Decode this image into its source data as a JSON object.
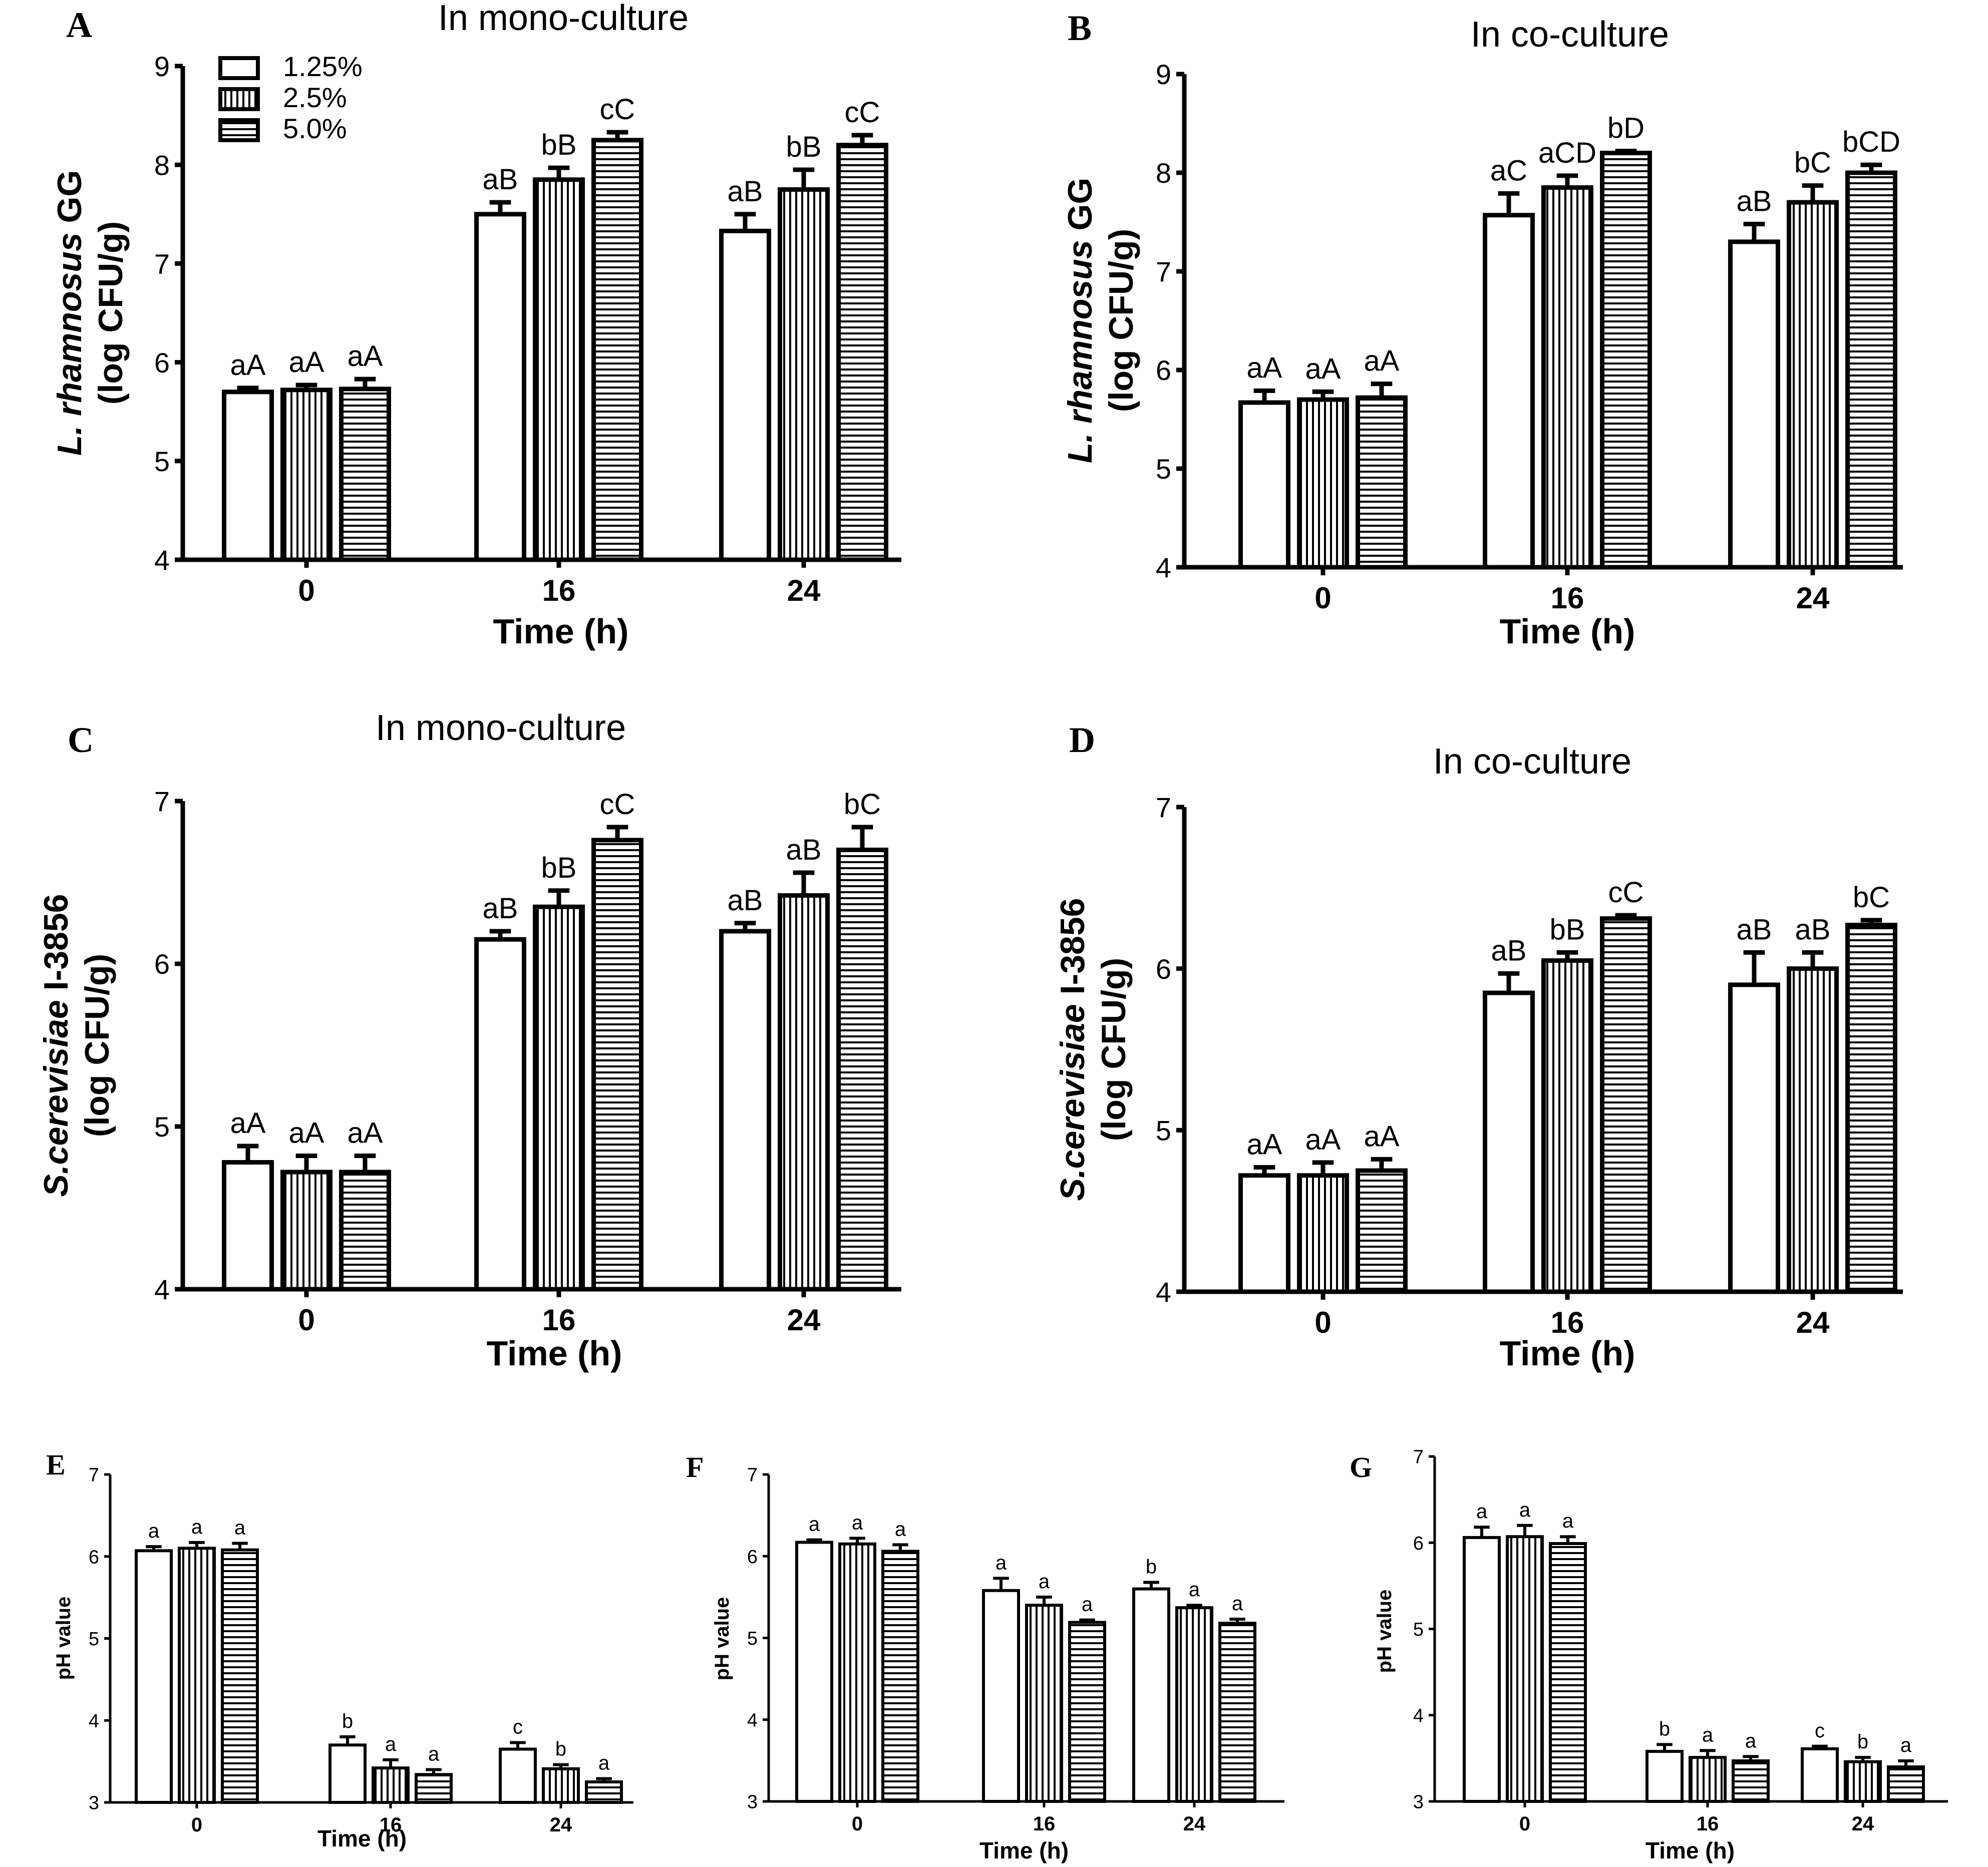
{
  "figure": {
    "legend": [
      "1.25%",
      "2.5%",
      "5.0%"
    ],
    "xlabel": "Time (h)",
    "categories": [
      "0",
      "16",
      "24"
    ]
  },
  "chart_data": [
    {
      "panel": "A",
      "type": "bar",
      "title": "In mono-culture",
      "ylabel_italic": "L. rhamnosus",
      "ylabel_rest": " GG",
      "ylabel_units": "(log CFU/g)",
      "ylim": [
        4,
        9
      ],
      "yticks": [
        "4",
        "5",
        "6",
        "7",
        "8",
        "9"
      ],
      "legend_shown": true,
      "series": [
        {
          "name": "1.25%",
          "values": [
            5.7,
            7.5,
            7.33
          ],
          "errors": [
            0.04,
            0.12,
            0.17
          ]
        },
        {
          "name": "2.5%",
          "values": [
            5.72,
            7.85,
            7.75
          ],
          "errors": [
            0.05,
            0.12,
            0.2
          ]
        },
        {
          "name": "5.0%",
          "values": [
            5.73,
            8.25,
            8.2
          ],
          "errors": [
            0.1,
            0.08,
            0.1
          ]
        }
      ],
      "annotations": [
        [
          "aA",
          "aA",
          "aA"
        ],
        [
          "aB",
          "bB",
          "cC"
        ],
        [
          "aB",
          "bB",
          "cC"
        ]
      ]
    },
    {
      "panel": "B",
      "type": "bar",
      "title": "In co-culture",
      "ylabel_italic": "L. rhamnosus",
      "ylabel_rest": " GG",
      "ylabel_units": "(log CFU/g)",
      "ylim": [
        4,
        9
      ],
      "yticks": [
        "4",
        "5",
        "6",
        "7",
        "8",
        "9"
      ],
      "legend_shown": false,
      "series": [
        {
          "name": "1.25%",
          "values": [
            5.67,
            7.57,
            7.3
          ],
          "errors": [
            0.12,
            0.22,
            0.18
          ]
        },
        {
          "name": "2.5%",
          "values": [
            5.7,
            7.85,
            7.7
          ],
          "errors": [
            0.08,
            0.12,
            0.17
          ]
        },
        {
          "name": "5.0%",
          "values": [
            5.72,
            8.2,
            8.0
          ],
          "errors": [
            0.14,
            0.02,
            0.08
          ]
        }
      ],
      "annotations": [
        [
          "aA",
          "aA",
          "aA"
        ],
        [
          "aC",
          "aCD",
          "bD"
        ],
        [
          "aB",
          "bC",
          "bCD"
        ]
      ]
    },
    {
      "panel": "C",
      "type": "bar",
      "title": "In mono-culture",
      "ylabel_italic": "S.cerevisiae",
      "ylabel_rest": " I-3856",
      "ylabel_units": "(log CFU/g)",
      "ylim": [
        4,
        7
      ],
      "yticks": [
        "4",
        "5",
        "6",
        "7"
      ],
      "legend_shown": false,
      "series": [
        {
          "name": "1.25%",
          "values": [
            4.78,
            6.15,
            6.2
          ],
          "errors": [
            0.1,
            0.05,
            0.05
          ]
        },
        {
          "name": "2.5%",
          "values": [
            4.72,
            6.35,
            6.42
          ],
          "errors": [
            0.1,
            0.1,
            0.14
          ]
        },
        {
          "name": "5.0%",
          "values": [
            4.72,
            6.76,
            6.7
          ],
          "errors": [
            0.1,
            0.08,
            0.14
          ]
        }
      ],
      "annotations": [
        [
          "aA",
          "aA",
          "aA"
        ],
        [
          "aB",
          "bB",
          "cC"
        ],
        [
          "aB",
          "aB",
          "bC"
        ]
      ]
    },
    {
      "panel": "D",
      "type": "bar",
      "title": "In co-culture",
      "ylabel_italic": "S.cerevisiae",
      "ylabel_rest": " I-3856",
      "ylabel_units": "(log CFU/g)",
      "ylim": [
        4,
        7
      ],
      "yticks": [
        "4",
        "5",
        "6",
        "7"
      ],
      "legend_shown": false,
      "series": [
        {
          "name": "1.25%",
          "values": [
            4.72,
            5.85,
            5.9
          ],
          "errors": [
            0.05,
            0.12,
            0.2
          ]
        },
        {
          "name": "2.5%",
          "values": [
            4.72,
            6.05,
            6.0
          ],
          "errors": [
            0.08,
            0.05,
            0.1
          ]
        },
        {
          "name": "5.0%",
          "values": [
            4.75,
            6.31,
            6.27
          ],
          "errors": [
            0.07,
            0.02,
            0.03
          ]
        }
      ],
      "annotations": [
        [
          "aA",
          "aA",
          "aA"
        ],
        [
          "aB",
          "bB",
          "cC"
        ],
        [
          "aB",
          "aB",
          "bC"
        ]
      ]
    },
    {
      "panel": "E",
      "type": "bar",
      "title": "",
      "ylabel_plain": "pH value",
      "ylim": [
        3,
        7
      ],
      "yticks": [
        "3",
        "4",
        "5",
        "6",
        "7"
      ],
      "legend_shown": false,
      "series": [
        {
          "name": "1.25%",
          "values": [
            6.07,
            3.7,
            3.65
          ],
          "errors": [
            0.05,
            0.1,
            0.08
          ]
        },
        {
          "name": "2.5%",
          "values": [
            6.1,
            3.42,
            3.41
          ],
          "errors": [
            0.07,
            0.1,
            0.05
          ]
        },
        {
          "name": "5.0%",
          "values": [
            6.08,
            3.34,
            3.25
          ],
          "errors": [
            0.08,
            0.06,
            0.04
          ]
        }
      ],
      "annotations": [
        [
          "a",
          "a",
          "a"
        ],
        [
          "b",
          "a",
          "a"
        ],
        [
          "c",
          "b",
          "a"
        ]
      ]
    },
    {
      "panel": "F",
      "type": "bar",
      "title": "",
      "ylabel_plain": "pH value",
      "ylim": [
        3,
        7
      ],
      "yticks": [
        "3",
        "4",
        "5",
        "6",
        "7"
      ],
      "legend_shown": false,
      "series": [
        {
          "name": "1.25%",
          "values": [
            6.17,
            5.58,
            5.6
          ],
          "errors": [
            0.03,
            0.15,
            0.08
          ]
        },
        {
          "name": "2.5%",
          "values": [
            6.15,
            5.4,
            5.37
          ],
          "errors": [
            0.07,
            0.1,
            0.03
          ]
        },
        {
          "name": "5.0%",
          "values": [
            6.06,
            5.19,
            5.18
          ],
          "errors": [
            0.08,
            0.03,
            0.05
          ]
        }
      ],
      "annotations": [
        [
          "a",
          "a",
          "a"
        ],
        [
          "a",
          "a",
          "a"
        ],
        [
          "b",
          "a",
          "a"
        ]
      ]
    },
    {
      "panel": "G",
      "type": "bar",
      "title": "",
      "ylabel_plain": "pH value",
      "ylim": [
        3,
        7
      ],
      "yticks": [
        "3",
        "4",
        "5",
        "6",
        "7"
      ],
      "legend_shown": false,
      "series": [
        {
          "name": "1.25%",
          "values": [
            6.06,
            3.58,
            3.61
          ],
          "errors": [
            0.12,
            0.08,
            0.03
          ]
        },
        {
          "name": "2.5%",
          "values": [
            6.07,
            3.51,
            3.46
          ],
          "errors": [
            0.13,
            0.08,
            0.05
          ]
        },
        {
          "name": "5.0%",
          "values": [
            5.99,
            3.47,
            3.4
          ],
          "errors": [
            0.08,
            0.05,
            0.07
          ]
        }
      ],
      "annotations": [
        [
          "a",
          "a",
          "a"
        ],
        [
          "b",
          "a",
          "a"
        ],
        [
          "c",
          "b",
          "a"
        ]
      ]
    }
  ]
}
